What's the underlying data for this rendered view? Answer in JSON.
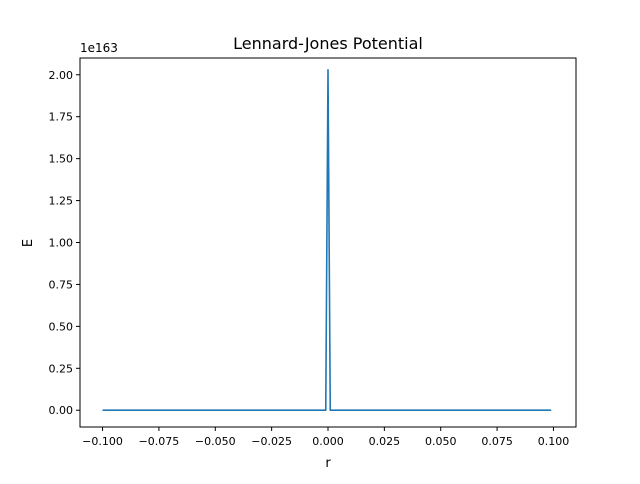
{
  "chart_data": {
    "type": "line",
    "title": "Lennard-Jones Potential",
    "xlabel": "r",
    "ylabel": "E",
    "y_offset_label": "1e163",
    "xlim": [
      -0.11,
      0.11
    ],
    "ylim": [
      -0.1,
      2.1
    ],
    "x_ticks": [
      -0.1,
      -0.075,
      -0.05,
      -0.025,
      0.0,
      0.025,
      0.05,
      0.075,
      0.1
    ],
    "x_tick_labels": [
      "−0.100",
      "−0.075",
      "−0.050",
      "−0.025",
      "0.000",
      "0.025",
      "0.050",
      "0.075",
      "0.100"
    ],
    "y_ticks": [
      0.0,
      0.25,
      0.5,
      0.75,
      1.0,
      1.25,
      1.5,
      1.75,
      2.0
    ],
    "y_tick_labels": [
      "0.00",
      "0.25",
      "0.50",
      "0.75",
      "1.00",
      "1.25",
      "1.50",
      "1.75",
      "2.00"
    ],
    "grid": false,
    "color": "#1f77b4",
    "series": [
      {
        "x": [
          -0.1,
          -0.001,
          0.0,
          0.001,
          0.099
        ],
        "y": [
          0.0,
          0.0,
          2.03,
          0.0,
          0.0
        ]
      }
    ]
  }
}
